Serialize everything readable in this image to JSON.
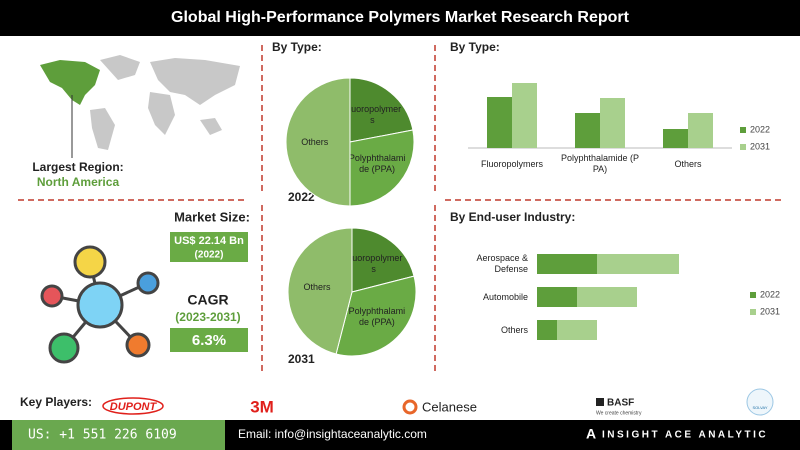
{
  "header": {
    "title": "Global High-Performance Polymers Market Research Report"
  },
  "region": {
    "label": "Largest Region:",
    "value": "North America"
  },
  "market_size": {
    "label": "Market Size:",
    "value": "US$ 22.14 Bn",
    "year": "(2022)"
  },
  "cagr": {
    "label": "CAGR",
    "period": "(2023-2031)",
    "value": "6.3%"
  },
  "key_players": {
    "label": "Key Players:",
    "companies": [
      "DUPONT",
      "3M",
      "Celanese",
      "BASF",
      "We create chemistry",
      "SOLVAY"
    ]
  },
  "footer": {
    "phone": "US: +1 551 226 6109",
    "email": "Email: info@insightaceanalytic.com",
    "brand": "INSIGHT ACE ANALYTIC"
  },
  "chart_data": [
    {
      "type": "pie",
      "title": "By Type:",
      "subtitle": "2022",
      "categories": [
        "Fluoropolymers",
        "Polyphthalamide (PPA)",
        "Others"
      ],
      "values": [
        22,
        28,
        50
      ],
      "colors": [
        "#4e8a2e",
        "#6aab45",
        "#8fbc6a"
      ]
    },
    {
      "type": "pie",
      "subtitle": "2031",
      "categories": [
        "Fluoropolymers",
        "Polyphthalamide (PPA)",
        "Others"
      ],
      "values": [
        21,
        33,
        46
      ],
      "colors": [
        "#4e8a2e",
        "#6aab45",
        "#8fbc6a"
      ]
    },
    {
      "type": "bar",
      "title": "By Type:",
      "categories": [
        "Fluoropolymers",
        "Polyphthalamide (PPA)",
        "Others"
      ],
      "series": [
        {
          "name": "2022",
          "color": "#5e9e3b",
          "values": [
            51,
            35,
            19
          ]
        },
        {
          "name": "2031",
          "color": "#a8d08d",
          "values": [
            65,
            50,
            35
          ]
        }
      ]
    },
    {
      "type": "hbar_stacked",
      "title": "By End-user Industry:",
      "categories": [
        "Aerospace & Defense",
        "Automobile",
        "Others"
      ],
      "series": [
        {
          "name": "2022",
          "color": "#5e9e3b",
          "values": [
            60,
            40,
            20
          ]
        },
        {
          "name": "2031",
          "color": "#a8d08d",
          "values": [
            82,
            60,
            40
          ]
        }
      ]
    }
  ]
}
